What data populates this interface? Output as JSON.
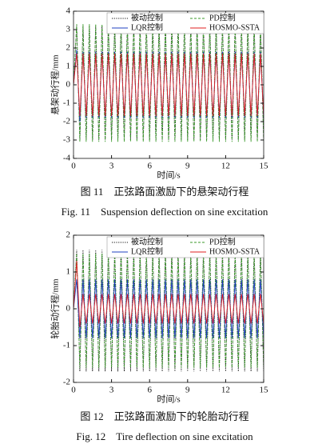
{
  "chart_data": [
    {
      "type": "line",
      "xlabel": "时间/s",
      "ylabel": "悬架动行程/mm",
      "caption_cn": "图 11　正弦路面激励下的悬架动行程",
      "caption_en": "Fig. 11　Suspension deflection on sine excitation",
      "xlim": [
        0,
        15
      ],
      "xticks": [
        0,
        3,
        6,
        9,
        12,
        15
      ],
      "ylim": [
        -4,
        4
      ],
      "yticks": [
        -4,
        -3,
        -2,
        -1,
        0,
        1,
        2,
        3,
        4
      ],
      "legend": "upper",
      "x": [
        0,
        0.25,
        0.5,
        0.75,
        1,
        1.25,
        1.5,
        1.75,
        2,
        2.25,
        2.5,
        2.75,
        3,
        3.25,
        3.5,
        3.75,
        4,
        4.25,
        4.5,
        4.75,
        5,
        5.25,
        5.5,
        5.75,
        6,
        6.25,
        6.5,
        6.75,
        7,
        7.25,
        7.5,
        7.75,
        8,
        8.25,
        8.5,
        8.75,
        9,
        9.25,
        9.5,
        9.75,
        10,
        10.25,
        10.5,
        10.75,
        11,
        11.25,
        11.5,
        11.75,
        12,
        12.25,
        12.5,
        12.75,
        13,
        13.25,
        13.5,
        13.75,
        14,
        14.25,
        14.5,
        14.75,
        15
      ],
      "series": [
        {
          "name": "被动控制",
          "color": "#111111",
          "style": "dotted",
          "values": [
            0,
            3.2,
            -3,
            3.2,
            -3,
            3.2,
            -3,
            3.2,
            -3,
            3.2,
            -3,
            3.2,
            -3,
            3.2,
            -3,
            3.2,
            -3,
            3.2,
            -3,
            3.2,
            -3,
            3.2,
            -3,
            3.2,
            -3,
            3.2,
            -3,
            3.2,
            -3,
            3.2,
            -3,
            3.2,
            -3,
            3.2,
            -3,
            3.2,
            -3,
            3.2,
            -3,
            3.2,
            -3,
            3.2,
            -3,
            3.2,
            -3,
            3.2,
            -3,
            3.2,
            -3,
            3.2,
            -3,
            3.2,
            -3,
            3.2,
            -3,
            3.2,
            -3,
            3.2,
            -3,
            3.2,
            -3
          ]
        },
        {
          "name": "PD控制",
          "color": "#3a9a2a",
          "style": "dashed",
          "values": [
            0,
            3.3,
            -3.1,
            3.3,
            -3.1,
            3.3,
            -3.1,
            3.3,
            -3.1,
            3.3,
            -3.1,
            3.3,
            -3.1,
            3.3,
            -3.1,
            3.3,
            -3.1,
            3.3,
            -3.1,
            3.3,
            -3.1,
            3.3,
            -3.1,
            3.3,
            -3.1,
            3.3,
            -3.1,
            3.3,
            -3.1,
            3.3,
            -3.1,
            3.3,
            -3.1,
            3.3,
            -3.1,
            3.3,
            -3.1,
            3.3,
            -3.1,
            3.3,
            -3.1,
            3.3,
            -3.1,
            3.3,
            -3.1,
            3.3,
            -3.1,
            3.3,
            -3.1,
            3.3,
            -3.1,
            3.3,
            -3.1,
            3.3,
            -3.1,
            3.3,
            -3.1,
            3.3,
            -3.1,
            3.3,
            -3.1
          ]
        },
        {
          "name": "LQR控制",
          "color": "#2040c0",
          "style": "solid",
          "values": [
            0,
            1.9,
            -2,
            1.8,
            -1.8,
            1.8,
            -1.8,
            1.8,
            -1.8,
            1.8,
            -1.8,
            1.8,
            -1.8,
            1.8,
            -1.8,
            1.8,
            -1.8,
            1.8,
            -1.8,
            1.8,
            -1.8,
            1.8,
            -1.8,
            1.8,
            -1.8,
            1.8,
            -1.8,
            1.8,
            -1.8,
            1.8,
            -1.8,
            1.8,
            -1.8,
            1.8,
            -1.8,
            1.8,
            -1.8,
            1.8,
            -1.8,
            1.8,
            -1.8,
            1.8,
            -1.8,
            1.8,
            -1.8,
            1.8,
            -1.8,
            1.8,
            -1.8,
            1.8,
            -1.8,
            1.8,
            -1.8,
            1.8,
            -1.8,
            1.8,
            -1.8,
            1.8,
            -1.8,
            1.8,
            -1.8
          ]
        },
        {
          "name": "HOSMO-SSTA",
          "color": "#e02020",
          "style": "solid",
          "values": [
            0,
            1.7,
            -1.7,
            1.7,
            -1.7,
            1.7,
            -1.7,
            1.7,
            -1.7,
            1.7,
            -1.7,
            1.7,
            -1.7,
            1.7,
            -1.7,
            1.7,
            -1.7,
            1.7,
            -1.7,
            1.7,
            -1.7,
            1.7,
            -1.7,
            1.7,
            -1.7,
            1.7,
            -1.7,
            1.7,
            -1.7,
            1.7,
            -1.7,
            1.7,
            -1.7,
            1.7,
            -1.7,
            1.7,
            -1.7,
            1.7,
            -1.7,
            1.7,
            -1.7,
            1.7,
            -1.7,
            1.7,
            -1.7,
            1.7,
            -1.7,
            1.7,
            -1.7,
            1.7,
            -1.7,
            1.7,
            -1.7,
            1.7,
            -1.7,
            1.7,
            -1.7,
            1.7,
            -1.7,
            1.7,
            -1.7
          ]
        }
      ]
    },
    {
      "type": "line",
      "xlabel": "时间/s",
      "ylabel": "轮胎动行程/mm",
      "caption_cn": "图 12　正弦路面激励下的轮胎动行程",
      "caption_en": "Fig. 12　Tire deflection on sine excitation",
      "xlim": [
        0,
        15
      ],
      "xticks": [
        0,
        3,
        6,
        9,
        12,
        15
      ],
      "ylim": [
        -2,
        2
      ],
      "yticks": [
        -2,
        -1,
        0,
        1,
        2
      ],
      "legend": "upper",
      "x": [
        0,
        0.25,
        0.5,
        0.75,
        1,
        1.25,
        1.5,
        1.75,
        2,
        2.25,
        2.5,
        2.75,
        3,
        3.25,
        3.5,
        3.75,
        4,
        4.25,
        4.5,
        4.75,
        5,
        5.25,
        5.5,
        5.75,
        6,
        6.25,
        6.5,
        6.75,
        7,
        7.25,
        7.5,
        7.75,
        8,
        8.25,
        8.5,
        8.75,
        9,
        9.25,
        9.5,
        9.75,
        10,
        10.25,
        10.5,
        10.75,
        11,
        11.25,
        11.5,
        11.75,
        12,
        12.25,
        12.5,
        12.75,
        13,
        13.25,
        13.5,
        13.75,
        14,
        14.25,
        14.5,
        14.75,
        15
      ],
      "series": [
        {
          "name": "被动控制",
          "color": "#111111",
          "style": "dotted",
          "values": [
            0,
            1.6,
            -1.7,
            1.6,
            -1.7,
            1.6,
            -1.7,
            1.6,
            -1.7,
            1.6,
            -1.7,
            1.6,
            -1.7,
            1.6,
            -1.7,
            1.6,
            -1.7,
            1.6,
            -1.7,
            1.6,
            -1.7,
            1.6,
            -1.7,
            1.6,
            -1.7,
            1.6,
            -1.7,
            1.6,
            -1.7,
            1.6,
            -1.7,
            1.6,
            -1.7,
            1.6,
            -1.7,
            1.6,
            -1.7,
            1.6,
            -1.7,
            1.6,
            -1.7,
            1.6,
            -1.7,
            1.6,
            -1.7,
            1.6,
            -1.7,
            1.6,
            -1.7,
            1.6,
            -1.7,
            1.6,
            -1.7,
            1.6,
            -1.7,
            1.6,
            -1.7,
            1.6,
            -1.7,
            1.6,
            -1.7
          ]
        },
        {
          "name": "PD控制",
          "color": "#3a9a2a",
          "style": "dashed",
          "values": [
            0,
            1.5,
            -1.6,
            1.5,
            -1.6,
            1.5,
            -1.6,
            1.5,
            -1.6,
            1.5,
            -1.6,
            1.5,
            -1.6,
            1.5,
            -1.6,
            1.5,
            -1.6,
            1.5,
            -1.6,
            1.5,
            -1.6,
            1.5,
            -1.6,
            1.5,
            -1.6,
            1.5,
            -1.6,
            1.5,
            -1.6,
            1.5,
            -1.6,
            1.5,
            -1.6,
            1.5,
            -1.6,
            1.5,
            -1.6,
            1.5,
            -1.6,
            1.5,
            -1.6,
            1.5,
            -1.6,
            1.5,
            -1.6,
            1.5,
            -1.6,
            1.5,
            -1.6,
            1.5,
            -1.6,
            1.5,
            -1.6,
            1.5,
            -1.6,
            1.5,
            -1.6,
            1.5,
            -1.6,
            1.5,
            -1.6
          ]
        },
        {
          "name": "LQR控制",
          "color": "#2040c0",
          "style": "solid",
          "values": [
            0,
            0.8,
            -0.8,
            0.8,
            -0.8,
            0.8,
            -0.8,
            0.8,
            -0.8,
            0.8,
            -0.8,
            0.8,
            -0.8,
            0.8,
            -0.8,
            0.8,
            -0.8,
            0.8,
            -0.8,
            0.8,
            -0.8,
            0.8,
            -0.8,
            0.8,
            -0.8,
            0.8,
            -0.8,
            0.8,
            -0.8,
            0.8,
            -0.8,
            0.8,
            -0.8,
            0.8,
            -0.8,
            0.8,
            -0.8,
            0.8,
            -0.8,
            0.8,
            -0.8,
            0.8,
            -0.8,
            0.8,
            -0.8,
            0.8,
            -0.8,
            0.8,
            -0.8,
            0.8,
            -0.8,
            0.8,
            -0.8,
            0.8,
            -0.8,
            0.8,
            -0.8,
            0.8,
            -0.8,
            0.8,
            -0.8
          ]
        },
        {
          "name": "HOSMO-SSTA",
          "color": "#e02020",
          "style": "solid",
          "values": [
            0,
            1.3,
            -0.5,
            0.4,
            -0.4,
            0.4,
            -0.4,
            0.4,
            -0.4,
            0.4,
            -0.4,
            0.4,
            -0.4,
            0.4,
            -0.4,
            0.4,
            -0.4,
            0.4,
            -0.4,
            0.4,
            -0.4,
            0.4,
            -0.4,
            0.4,
            -0.4,
            0.4,
            -0.4,
            0.4,
            -0.4,
            0.4,
            -0.4,
            0.4,
            -0.4,
            0.4,
            -0.4,
            0.4,
            -0.4,
            0.4,
            -0.4,
            0.4,
            -0.4,
            0.4,
            -0.4,
            0.4,
            -0.4,
            0.4,
            -0.4,
            0.4,
            -0.4,
            0.4,
            -0.4,
            0.4,
            -0.4,
            0.4,
            -0.4,
            0.4,
            -0.4,
            0.4,
            -0.4,
            0.4,
            -0.4
          ]
        }
      ]
    }
  ]
}
